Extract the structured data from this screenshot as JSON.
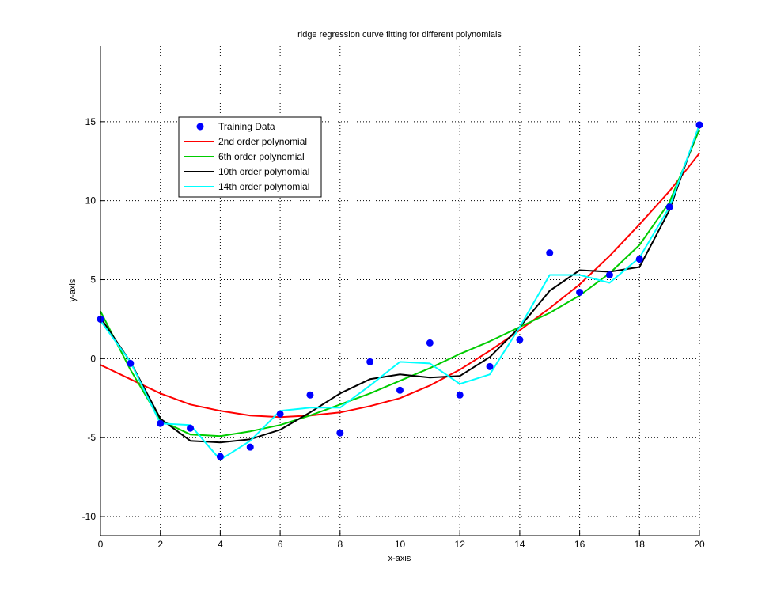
{
  "chart_data": {
    "type": "line",
    "title": "ridge regression curve fitting for different polynomials",
    "xlabel": "x-axis",
    "ylabel": "y-axis",
    "xlim": [
      0,
      20
    ],
    "ylim": [
      -11.2,
      19.8
    ],
    "xticks": [
      0,
      2,
      4,
      6,
      8,
      10,
      12,
      14,
      16,
      18,
      20
    ],
    "yticks": [
      -10,
      -5,
      0,
      5,
      10,
      15
    ],
    "grid": true,
    "legend_position": "top-left",
    "series": [
      {
        "name": "Training Data",
        "style": "markers",
        "color": "#0000ff",
        "x": [
          0,
          1,
          2,
          3,
          4,
          5,
          6,
          7,
          8,
          9,
          10,
          11,
          12,
          13,
          14,
          15,
          16,
          17,
          18,
          19,
          20
        ],
        "y": [
          2.5,
          -0.3,
          -4.1,
          -4.4,
          -6.2,
          -5.6,
          -3.5,
          -2.3,
          -4.7,
          -0.2,
          -2.0,
          1.0,
          -2.3,
          -0.5,
          1.2,
          6.7,
          4.2,
          5.3,
          6.3,
          9.6,
          14.8
        ]
      },
      {
        "name": "2nd order polynomial",
        "style": "line",
        "color": "#ff0000",
        "x": [
          0,
          1,
          2,
          3,
          4,
          5,
          6,
          7,
          8,
          9,
          10,
          11,
          12,
          13,
          14,
          15,
          16,
          17,
          18,
          19,
          20
        ],
        "y": [
          -0.4,
          -1.3,
          -2.2,
          -2.9,
          -3.3,
          -3.6,
          -3.7,
          -3.6,
          -3.4,
          -3.0,
          -2.5,
          -1.7,
          -0.7,
          0.5,
          1.8,
          3.2,
          4.7,
          6.5,
          8.5,
          10.6,
          13.0
        ]
      },
      {
        "name": "6th order polynomial",
        "style": "line",
        "color": "#00cc00",
        "x": [
          0,
          1,
          2,
          3,
          4,
          5,
          6,
          7,
          8,
          9,
          10,
          11,
          12,
          13,
          14,
          15,
          16,
          17,
          18,
          19,
          20
        ],
        "y": [
          3.0,
          -0.7,
          -3.9,
          -4.8,
          -4.9,
          -4.6,
          -4.2,
          -3.6,
          -2.9,
          -2.2,
          -1.4,
          -0.6,
          0.3,
          1.1,
          2.0,
          2.9,
          4.0,
          5.4,
          7.2,
          9.9,
          14.5
        ]
      },
      {
        "name": "10th order polynomial",
        "style": "line",
        "color": "#000000",
        "x": [
          0,
          1,
          2,
          3,
          4,
          5,
          6,
          7,
          8,
          9,
          10,
          11,
          12,
          13,
          14,
          15,
          16,
          17,
          18,
          19,
          20
        ],
        "y": [
          2.6,
          -0.2,
          -3.8,
          -5.2,
          -5.3,
          -5.1,
          -4.5,
          -3.4,
          -2.2,
          -1.3,
          -1.0,
          -1.2,
          -1.1,
          0.1,
          2.0,
          4.3,
          5.6,
          5.5,
          5.8,
          9.4,
          14.8
        ]
      },
      {
        "name": "14th order polynomial",
        "style": "line",
        "color": "#00ffff",
        "x": [
          0,
          1,
          2,
          3,
          4,
          5,
          6,
          7,
          8,
          9,
          10,
          11,
          12,
          13,
          14,
          15,
          16,
          17,
          18,
          19,
          20
        ],
        "y": [
          2.4,
          -0.2,
          -4.1,
          -4.2,
          -6.4,
          -5.2,
          -3.3,
          -3.1,
          -3.1,
          -1.7,
          -0.2,
          -0.3,
          -1.6,
          -1.0,
          2.0,
          5.3,
          5.3,
          4.8,
          6.4,
          9.6,
          14.8
        ]
      }
    ]
  }
}
